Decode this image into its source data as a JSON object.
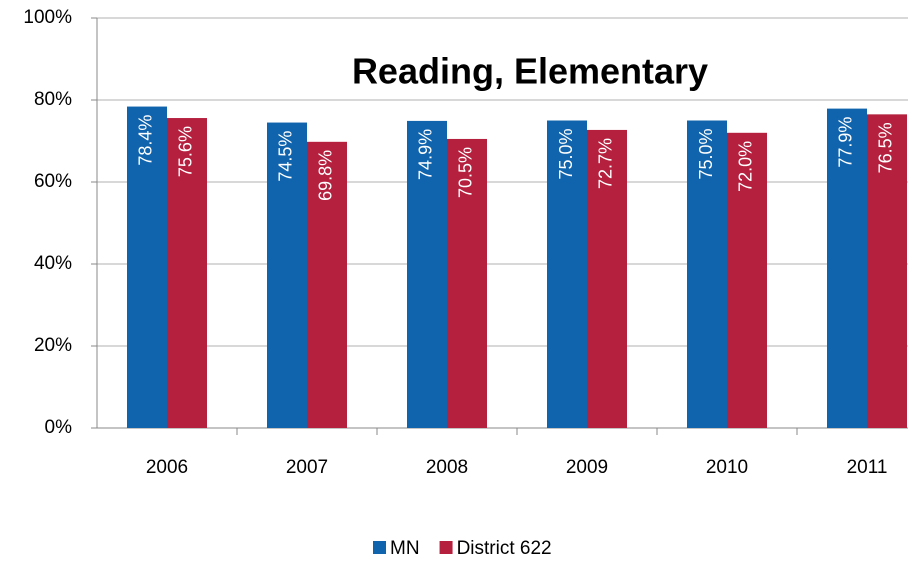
{
  "chart_data": {
    "type": "bar",
    "title": "Reading, Elementary",
    "categories": [
      "2006",
      "2007",
      "2008",
      "2009",
      "2010",
      "2011"
    ],
    "series": [
      {
        "name": "MN",
        "color": "#1063ad",
        "values": [
          78.4,
          74.5,
          74.9,
          75.0,
          75.0,
          77.9
        ],
        "value_labels": [
          "78.4%",
          "74.5%",
          "74.9%",
          "75.0%",
          "75.0%",
          "77.9%"
        ]
      },
      {
        "name": "District 622",
        "color": "#b4203e",
        "values": [
          75.6,
          69.8,
          70.5,
          72.7,
          72.0,
          76.5
        ],
        "value_labels": [
          "75.6%",
          "69.8%",
          "70.5%",
          "72.7%",
          "72.0%",
          "76.5%"
        ]
      }
    ],
    "ylim": [
      0,
      100
    ],
    "yticks": [
      {
        "value": 0,
        "label": "0%"
      },
      {
        "value": 20,
        "label": "20%"
      },
      {
        "value": 40,
        "label": "40%"
      },
      {
        "value": 60,
        "label": "60%"
      },
      {
        "value": 80,
        "label": "80%"
      },
      {
        "value": 100,
        "label": "100%"
      }
    ],
    "grid": true,
    "legend": "bottom"
  }
}
